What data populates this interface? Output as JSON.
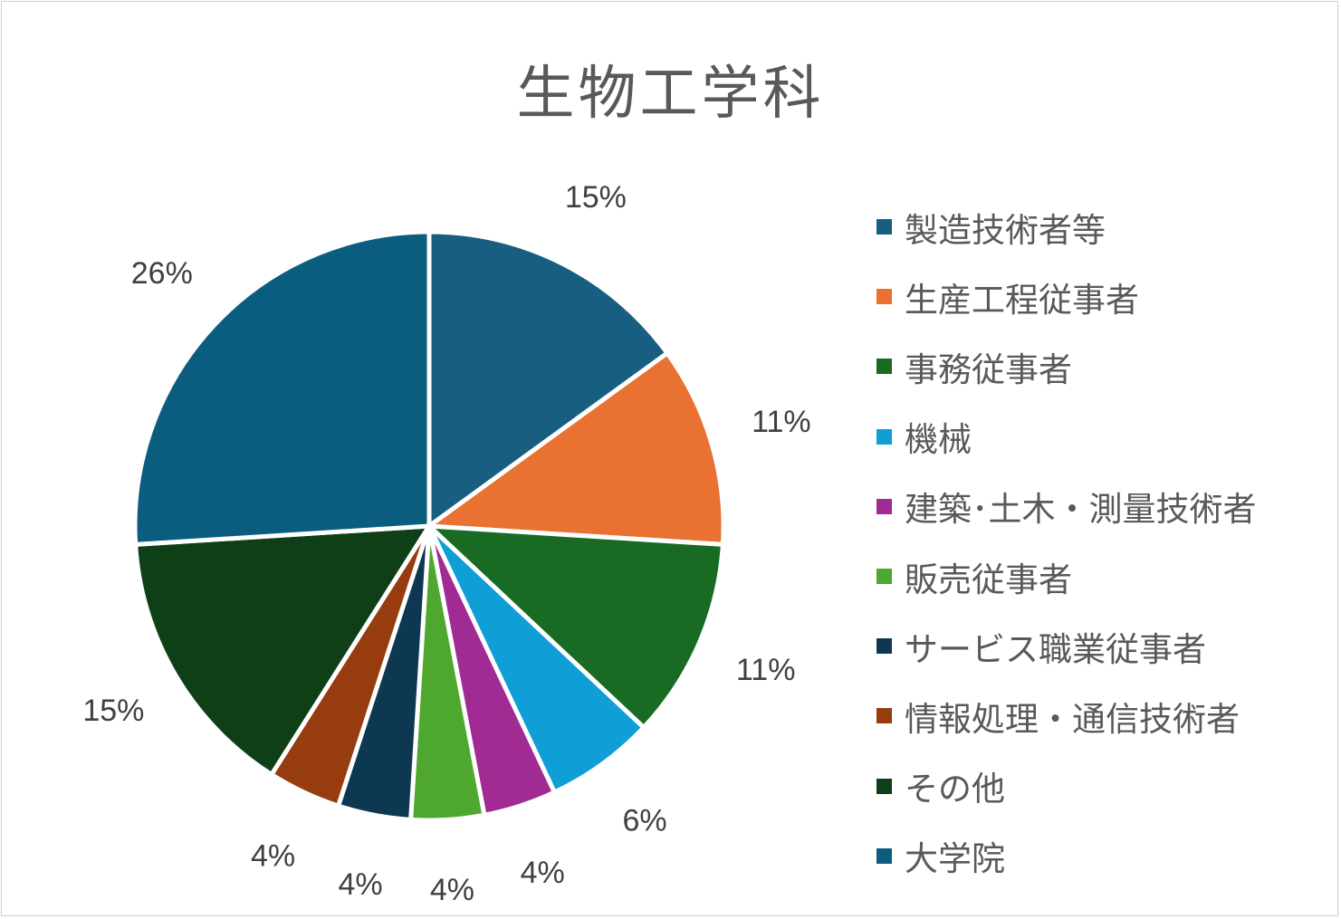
{
  "chart_data": {
    "type": "pie",
    "title": "生物工学科",
    "legend_position": "right",
    "slices": [
      {
        "label": "製造技術者等",
        "value": 15,
        "data_label": "15%",
        "color": "#185e80"
      },
      {
        "label": "生産工程従事者",
        "value": 11,
        "data_label": "11%",
        "color": "#e97132"
      },
      {
        "label": "事務従事者",
        "value": 11,
        "data_label": "11%",
        "color": "#196b24"
      },
      {
        "label": "機械",
        "value": 6,
        "data_label": "6%",
        "color": "#0f9ed5"
      },
      {
        "label": "建築･土木・測量技術者",
        "value": 4,
        "data_label": "4%",
        "color": "#a02b93"
      },
      {
        "label": "販売従事者",
        "value": 4,
        "data_label": "4%",
        "color": "#4ea72e"
      },
      {
        "label": "サービス職業従事者",
        "value": 4,
        "data_label": "4%",
        "color": "#0e3852"
      },
      {
        "label": "情報処理・通信技術者",
        "value": 4,
        "data_label": "4%",
        "color": "#973c0e"
      },
      {
        "label": "その他",
        "value": 15,
        "data_label": "15%",
        "color": "#0f3f17"
      },
      {
        "label": "大学院",
        "value": 26,
        "data_label": "26%",
        "color": "#0b5d80"
      }
    ]
  }
}
